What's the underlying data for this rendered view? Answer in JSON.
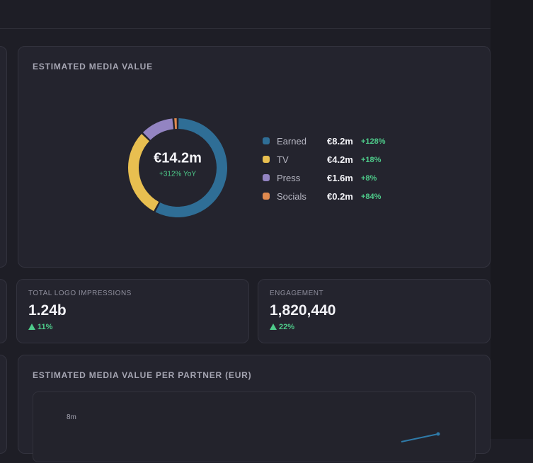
{
  "media_value": {
    "title": "ESTIMATED MEDIA VALUE",
    "total_label": "€14.2m",
    "yoy_label": "+312% YoY",
    "items": [
      {
        "name": "Earned",
        "color": "#2f6e96",
        "value": 8.2,
        "value_label": "€8.2m",
        "change": "+128%"
      },
      {
        "name": "TV",
        "color": "#e8bf50",
        "value": 4.2,
        "value_label": "€4.2m",
        "change": "+18%"
      },
      {
        "name": "Press",
        "color": "#9384c2",
        "value": 1.6,
        "value_label": "€1.6m",
        "change": "+8%"
      },
      {
        "name": "Socials",
        "color": "#e08a4f",
        "value": 0.2,
        "value_label": "€0.2m",
        "change": "+84%"
      }
    ]
  },
  "kpis": [
    {
      "label": "TOTAL LOGO IMPRESSIONS",
      "value": "1.24b",
      "change": "11%"
    },
    {
      "label": "ENGAGEMENT",
      "value": "1,820,440",
      "change": "22%"
    }
  ],
  "partner_chart": {
    "title": "ESTIMATED MEDIA VALUE PER PARTNER (EUR)",
    "y_tick_label": "8m"
  }
}
